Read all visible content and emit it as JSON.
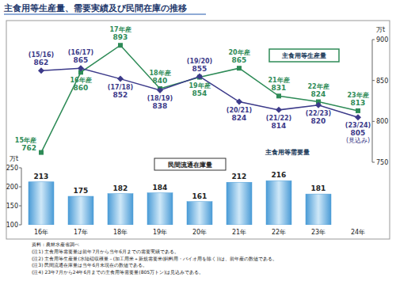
{
  "chart_data": {
    "type": "bar",
    "title": "主食用等生産量、需要実績及び民間在庫の推移",
    "categories": [
      "16年",
      "17年",
      "18年",
      "19年",
      "20年",
      "21年",
      "22年",
      "23年",
      "24年"
    ],
    "ylabel": "万t",
    "y2label": "万t",
    "ylim": [
      100,
      250
    ],
    "yticks": [
      100,
      150,
      200,
      250
    ],
    "y2lim": [
      750,
      900
    ],
    "y2ticks": [
      750,
      800,
      850,
      900
    ],
    "grid": false,
    "data_labels": true,
    "series": [
      {
        "name": "民間流通在庫量",
        "type": "bar",
        "color": "#4a9bd6",
        "values": [
          213,
          175,
          182,
          184,
          161,
          212,
          216,
          181,
          null
        ]
      },
      {
        "name": "主食用等生産量",
        "type": "line",
        "axis": "y2",
        "color": "#2e8b57",
        "marker": "square",
        "values": [
          762,
          860,
          893,
          840,
          854,
          865,
          831,
          824,
          813
        ],
        "labels": [
          "15年産",
          "16年産",
          "17年産",
          "18年産",
          "19年産",
          "20年産",
          "21年産",
          "22年産",
          "23年産"
        ]
      },
      {
        "name": "主食用等需要量",
        "type": "line",
        "axis": "y2",
        "color": "#3c3a8a",
        "marker": "diamond",
        "values": [
          862,
          865,
          852,
          838,
          855,
          824,
          814,
          820,
          805
        ],
        "labels": [
          "(15/16)",
          "(16/17)",
          "(17/18)",
          "(18/19)",
          "(19/20)",
          "(20/21)",
          "(21/22)",
          "(22/23)",
          "(23/24)"
        ],
        "note": "(見込み)"
      }
    ],
    "source": "資料：農林水産省調べ",
    "notes": [
      "(注1) 主食用等需要量は前年7月から当年6月までの需要実績である。",
      "(注2) 主食用等生産量(水陸稲収穫量－(加工用米＋新規需要米(飼料用・バイオ用を除く))は、前年産の数値である。",
      "(注3) 民間流通在庫量は当年6月末現在の数値である。",
      "(注4) 23年7月から24年6月までの主食用等需要量(805万トン)は見込みである。"
    ]
  }
}
